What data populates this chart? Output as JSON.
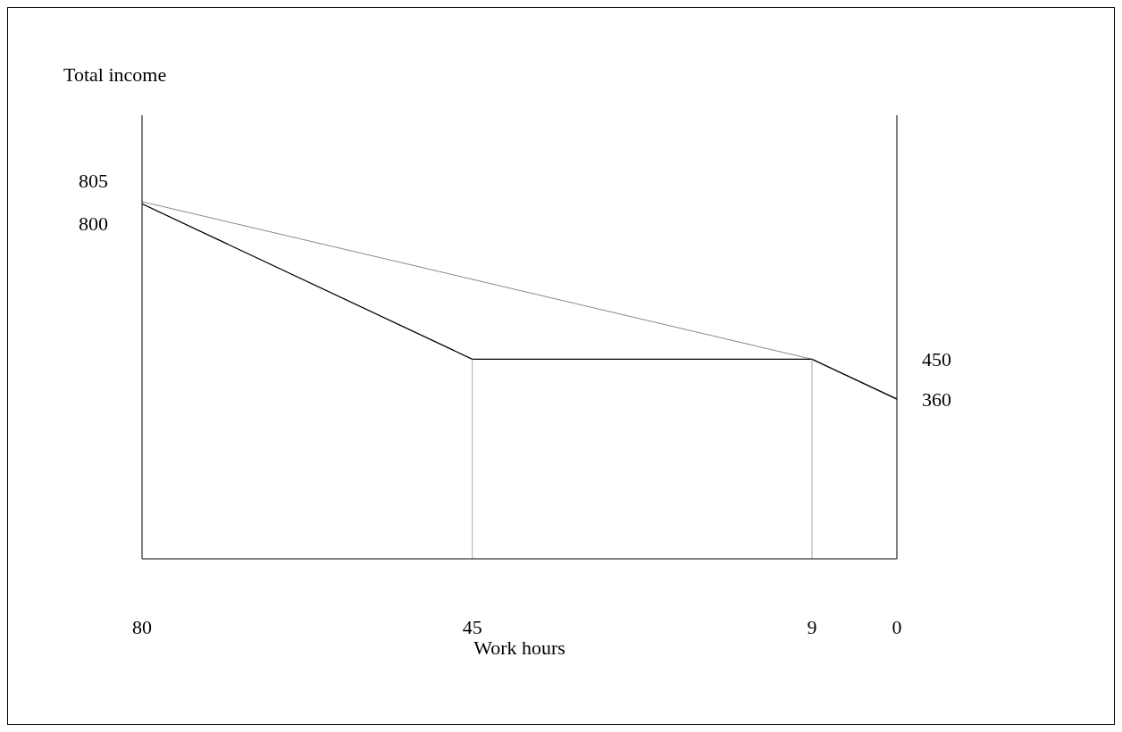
{
  "chart_data": {
    "type": "line",
    "xlabel": "Work hours",
    "ylabel": "Total income",
    "xlim": [
      80,
      0
    ],
    "xticks": [
      80,
      45,
      9,
      0
    ],
    "ylim": [
      0,
      1000
    ],
    "y2lim": [
      0,
      1000
    ],
    "y2ticks": [
      360,
      450
    ],
    "marker": "none",
    "series": [
      {
        "color": "#888888",
        "x": [
          80,
          9
        ],
        "values": [
          805,
          450
        ],
        "value_labels": [
          "805",
          null
        ]
      },
      {
        "color": "#000000",
        "x": [
          80,
          45,
          9,
          0
        ],
        "values": [
          800,
          450,
          450,
          360
        ],
        "value_labels": [
          "800",
          null,
          null,
          null
        ]
      },
      {
        "color": "#aaaaaa",
        "x": [
          45,
          45
        ],
        "values": [
          0,
          450
        ]
      },
      {
        "color": "#aaaaaa",
        "x": [
          9,
          9
        ],
        "values": [
          0,
          450
        ]
      }
    ]
  }
}
